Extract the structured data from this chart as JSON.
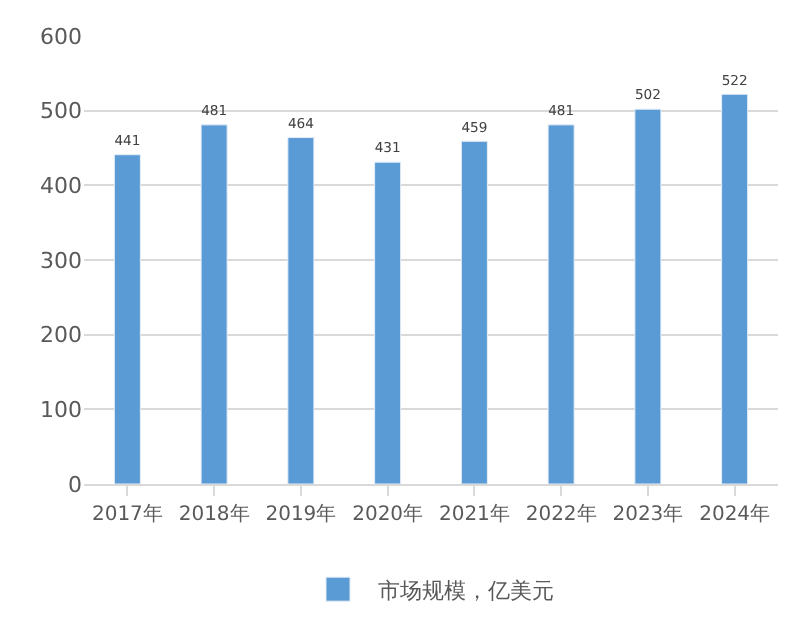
{
  "chart_data": {
    "type": "bar",
    "categories": [
      "2017年",
      "2018年",
      "2019年",
      "2020年",
      "2021年",
      "2022年",
      "2023年",
      "2024年"
    ],
    "series": [
      {
        "name": "市场规模，亿美元",
        "color": "#5b9bd5",
        "values": [
          441,
          481,
          464,
          431,
          459,
          481,
          502,
          522
        ]
      }
    ],
    "ylim": [
      0,
      600
    ],
    "yticks": [
      0,
      100,
      200,
      300,
      400,
      500,
      600
    ],
    "grid": "y",
    "legend": "bottom",
    "data_labels": true
  }
}
